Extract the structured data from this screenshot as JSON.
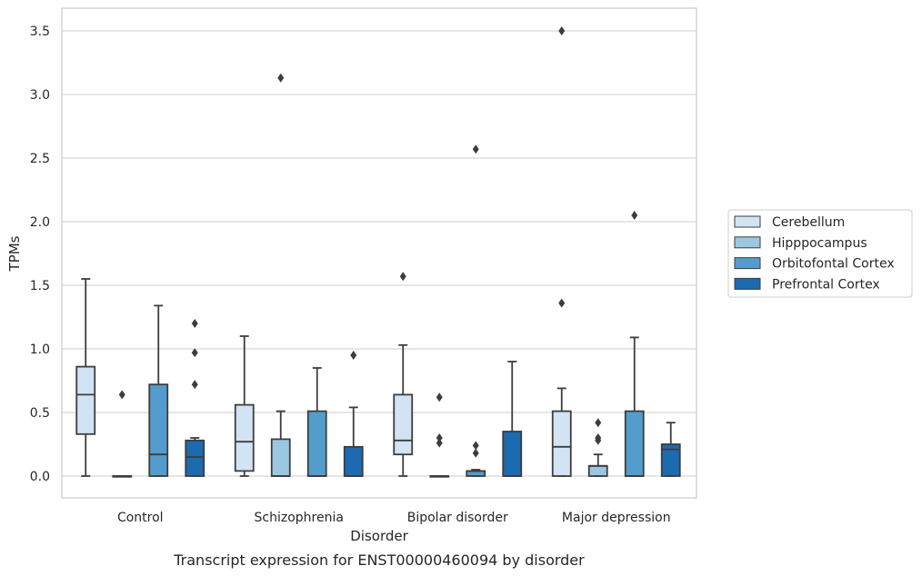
{
  "chart_data": {
    "type": "box",
    "caption": "Transcript expression for ENST00000460094 by disorder",
    "xlabel": "Disorder",
    "ylabel": "TPMs",
    "ylim": [
      -0.17,
      3.68
    ],
    "yticks": [
      "0.0",
      "0.5",
      "1.0",
      "1.5",
      "2.0",
      "2.5",
      "3.0",
      "3.5"
    ],
    "ytick_values": [
      0,
      0.5,
      1.0,
      1.5,
      2.0,
      2.5,
      3.0,
      3.5
    ],
    "grid": true,
    "legend_position": "right",
    "categories": [
      "Control",
      "Schizophrenia",
      "Bipolar disorder",
      "Major depression"
    ],
    "series": [
      {
        "name": "Cerebellum",
        "color": "#d2e3f3",
        "boxes": [
          {
            "whislo": 0.0,
            "q1": 0.33,
            "med": 0.64,
            "q3": 0.86,
            "whishi": 1.55,
            "fliers": []
          },
          {
            "whislo": 0.0,
            "q1": 0.04,
            "med": 0.27,
            "q3": 0.56,
            "whishi": 1.1,
            "fliers": []
          },
          {
            "whislo": 0.0,
            "q1": 0.17,
            "med": 0.28,
            "q3": 0.64,
            "whishi": 1.03,
            "fliers": [
              1.57
            ]
          },
          {
            "whislo": 0.0,
            "q1": 0.0,
            "med": 0.23,
            "q3": 0.51,
            "whishi": 0.69,
            "fliers": [
              1.36,
              3.5
            ]
          }
        ]
      },
      {
        "name": "Hipppocampus",
        "color": "#9ac8e0",
        "boxes": [
          {
            "whislo": 0.0,
            "q1": 0.0,
            "med": 0.0,
            "q3": 0.0,
            "whishi": 0.0,
            "fliers": [
              0.64
            ]
          },
          {
            "whislo": 0.0,
            "q1": 0.0,
            "med": 0.0,
            "q3": 0.29,
            "whishi": 0.51,
            "fliers": [
              3.13
            ]
          },
          {
            "whislo": 0.0,
            "q1": 0.0,
            "med": 0.0,
            "q3": 0.0,
            "whishi": 0.0,
            "fliers": [
              0.26,
              0.3,
              0.62
            ]
          },
          {
            "whislo": 0.0,
            "q1": 0.0,
            "med": 0.08,
            "q3": 0.08,
            "whishi": 0.17,
            "fliers": [
              0.28,
              0.3,
              0.42
            ]
          }
        ]
      },
      {
        "name": "Orbitofontal Cortex",
        "color": "#529dcc",
        "boxes": [
          {
            "whislo": 0.0,
            "q1": 0.0,
            "med": 0.17,
            "q3": 0.72,
            "whishi": 1.34,
            "fliers": []
          },
          {
            "whislo": 0.0,
            "q1": 0.0,
            "med": 0.0,
            "q3": 0.51,
            "whishi": 0.85,
            "fliers": []
          },
          {
            "whislo": 0.0,
            "q1": 0.0,
            "med": 0.04,
            "q3": 0.04,
            "whishi": 0.05,
            "fliers": [
              0.18,
              0.24,
              2.57
            ]
          },
          {
            "whislo": 0.0,
            "q1": 0.0,
            "med": 0.0,
            "q3": 0.51,
            "whishi": 1.09,
            "fliers": [
              2.05
            ]
          }
        ]
      },
      {
        "name": "Prefrontal Cortex",
        "color": "#1c6aaf",
        "boxes": [
          {
            "whislo": 0.0,
            "q1": 0.0,
            "med": 0.15,
            "q3": 0.28,
            "whishi": 0.3,
            "fliers": [
              0.72,
              0.97,
              1.2
            ]
          },
          {
            "whislo": 0.0,
            "q1": 0.0,
            "med": 0.0,
            "q3": 0.23,
            "whishi": 0.54,
            "fliers": [
              0.95
            ]
          },
          {
            "whislo": 0.0,
            "q1": 0.0,
            "med": 0.0,
            "q3": 0.35,
            "whishi": 0.9,
            "fliers": []
          },
          {
            "whislo": 0.0,
            "q1": 0.0,
            "med": 0.21,
            "q3": 0.25,
            "whishi": 0.42,
            "fliers": []
          }
        ]
      }
    ]
  }
}
